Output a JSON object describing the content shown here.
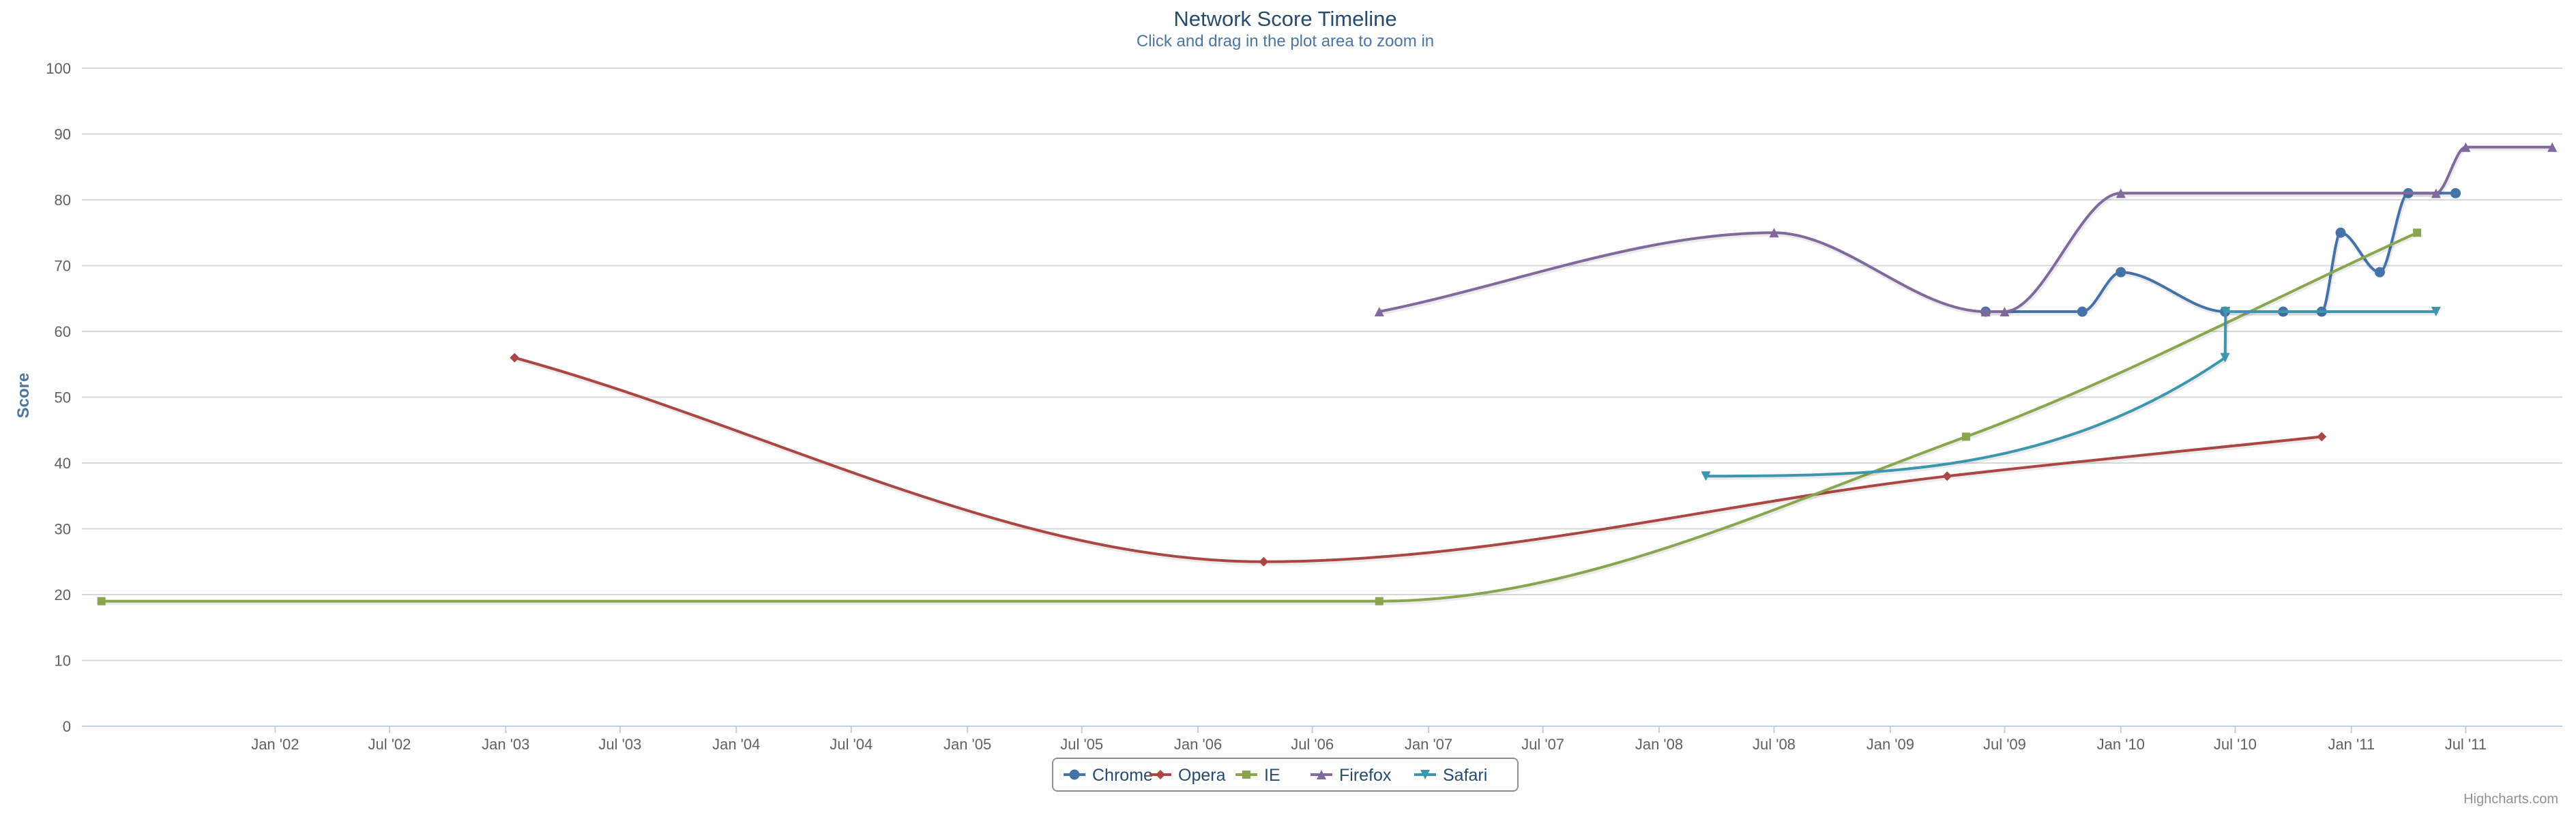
{
  "chart_data": {
    "type": "line",
    "title": "Network Score Timeline",
    "subtitle": "Click and drag in the plot area to zoom in",
    "xlabel": "",
    "ylabel": "Score",
    "xlim": [
      "2001-03-01",
      "2011-12-01"
    ],
    "ylim": [
      0,
      100
    ],
    "ytick_step": 10,
    "x_tick_labels": [
      {
        "date": "2002-01-01",
        "label": "Jan '02"
      },
      {
        "date": "2002-07-01",
        "label": "Jul '02"
      },
      {
        "date": "2003-01-01",
        "label": "Jan '03"
      },
      {
        "date": "2003-07-01",
        "label": "Jul '03"
      },
      {
        "date": "2004-01-01",
        "label": "Jan '04"
      },
      {
        "date": "2004-07-01",
        "label": "Jul '04"
      },
      {
        "date": "2005-01-01",
        "label": "Jan '05"
      },
      {
        "date": "2005-07-01",
        "label": "Jul '05"
      },
      {
        "date": "2006-01-01",
        "label": "Jan '06"
      },
      {
        "date": "2006-07-01",
        "label": "Jul '06"
      },
      {
        "date": "2007-01-01",
        "label": "Jan '07"
      },
      {
        "date": "2007-07-01",
        "label": "Jul '07"
      },
      {
        "date": "2008-01-01",
        "label": "Jan '08"
      },
      {
        "date": "2008-07-01",
        "label": "Jul '08"
      },
      {
        "date": "2009-01-01",
        "label": "Jan '09"
      },
      {
        "date": "2009-07-01",
        "label": "Jul '09"
      },
      {
        "date": "2010-01-01",
        "label": "Jan '10"
      },
      {
        "date": "2010-07-01",
        "label": "Jul '10"
      },
      {
        "date": "2011-01-01",
        "label": "Jan '11"
      },
      {
        "date": "2011-07-01",
        "label": "Jul '11"
      }
    ],
    "grid": true,
    "legend_position": "bottom-center",
    "series": [
      {
        "name": "Chrome",
        "color": "#4572a7",
        "marker": "circle",
        "points": [
          {
            "x": "2009-06-01",
            "y": 63
          },
          {
            "x": "2009-11-01",
            "y": 63
          },
          {
            "x": "2010-01-01",
            "y": 69
          },
          {
            "x": "2010-06-15",
            "y": 63
          },
          {
            "x": "2010-09-15",
            "y": 63
          },
          {
            "x": "2010-11-15",
            "y": 63
          },
          {
            "x": "2010-12-15",
            "y": 75
          },
          {
            "x": "2011-02-15",
            "y": 69
          },
          {
            "x": "2011-04-01",
            "y": 81
          },
          {
            "x": "2011-06-15",
            "y": 81
          }
        ]
      },
      {
        "name": "Opera",
        "color": "#aa4643",
        "marker": "diamond",
        "points": [
          {
            "x": "2003-01-15",
            "y": 56
          },
          {
            "x": "2006-04-15",
            "y": 25
          },
          {
            "x": "2009-04-01",
            "y": 38
          },
          {
            "x": "2010-11-15",
            "y": 44
          }
        ]
      },
      {
        "name": "IE",
        "color": "#89a54e",
        "marker": "square",
        "points": [
          {
            "x": "2001-04-01",
            "y": 19
          },
          {
            "x": "2006-10-15",
            "y": 19
          },
          {
            "x": "2009-05-01",
            "y": 44
          },
          {
            "x": "2011-04-15",
            "y": 75
          }
        ]
      },
      {
        "name": "Firefox",
        "color": "#80699b",
        "marker": "triangle",
        "points": [
          {
            "x": "2006-10-15",
            "y": 63
          },
          {
            "x": "2008-07-01",
            "y": 75
          },
          {
            "x": "2009-06-01",
            "y": 63
          },
          {
            "x": "2009-07-01",
            "y": 63
          },
          {
            "x": "2010-01-01",
            "y": 81
          },
          {
            "x": "2011-05-15",
            "y": 81
          },
          {
            "x": "2011-07-01",
            "y": 88
          },
          {
            "x": "2011-11-15",
            "y": 88
          }
        ]
      },
      {
        "name": "Safari",
        "color": "#3d96ae",
        "marker": "triangle-down",
        "points": [
          {
            "x": "2008-03-15",
            "y": 38
          },
          {
            "x": "2010-06-15",
            "y": 56
          },
          {
            "x": "2010-06-16",
            "y": 63
          },
          {
            "x": "2011-05-15",
            "y": 63
          }
        ]
      }
    ]
  },
  "credits": "Highcharts.com"
}
